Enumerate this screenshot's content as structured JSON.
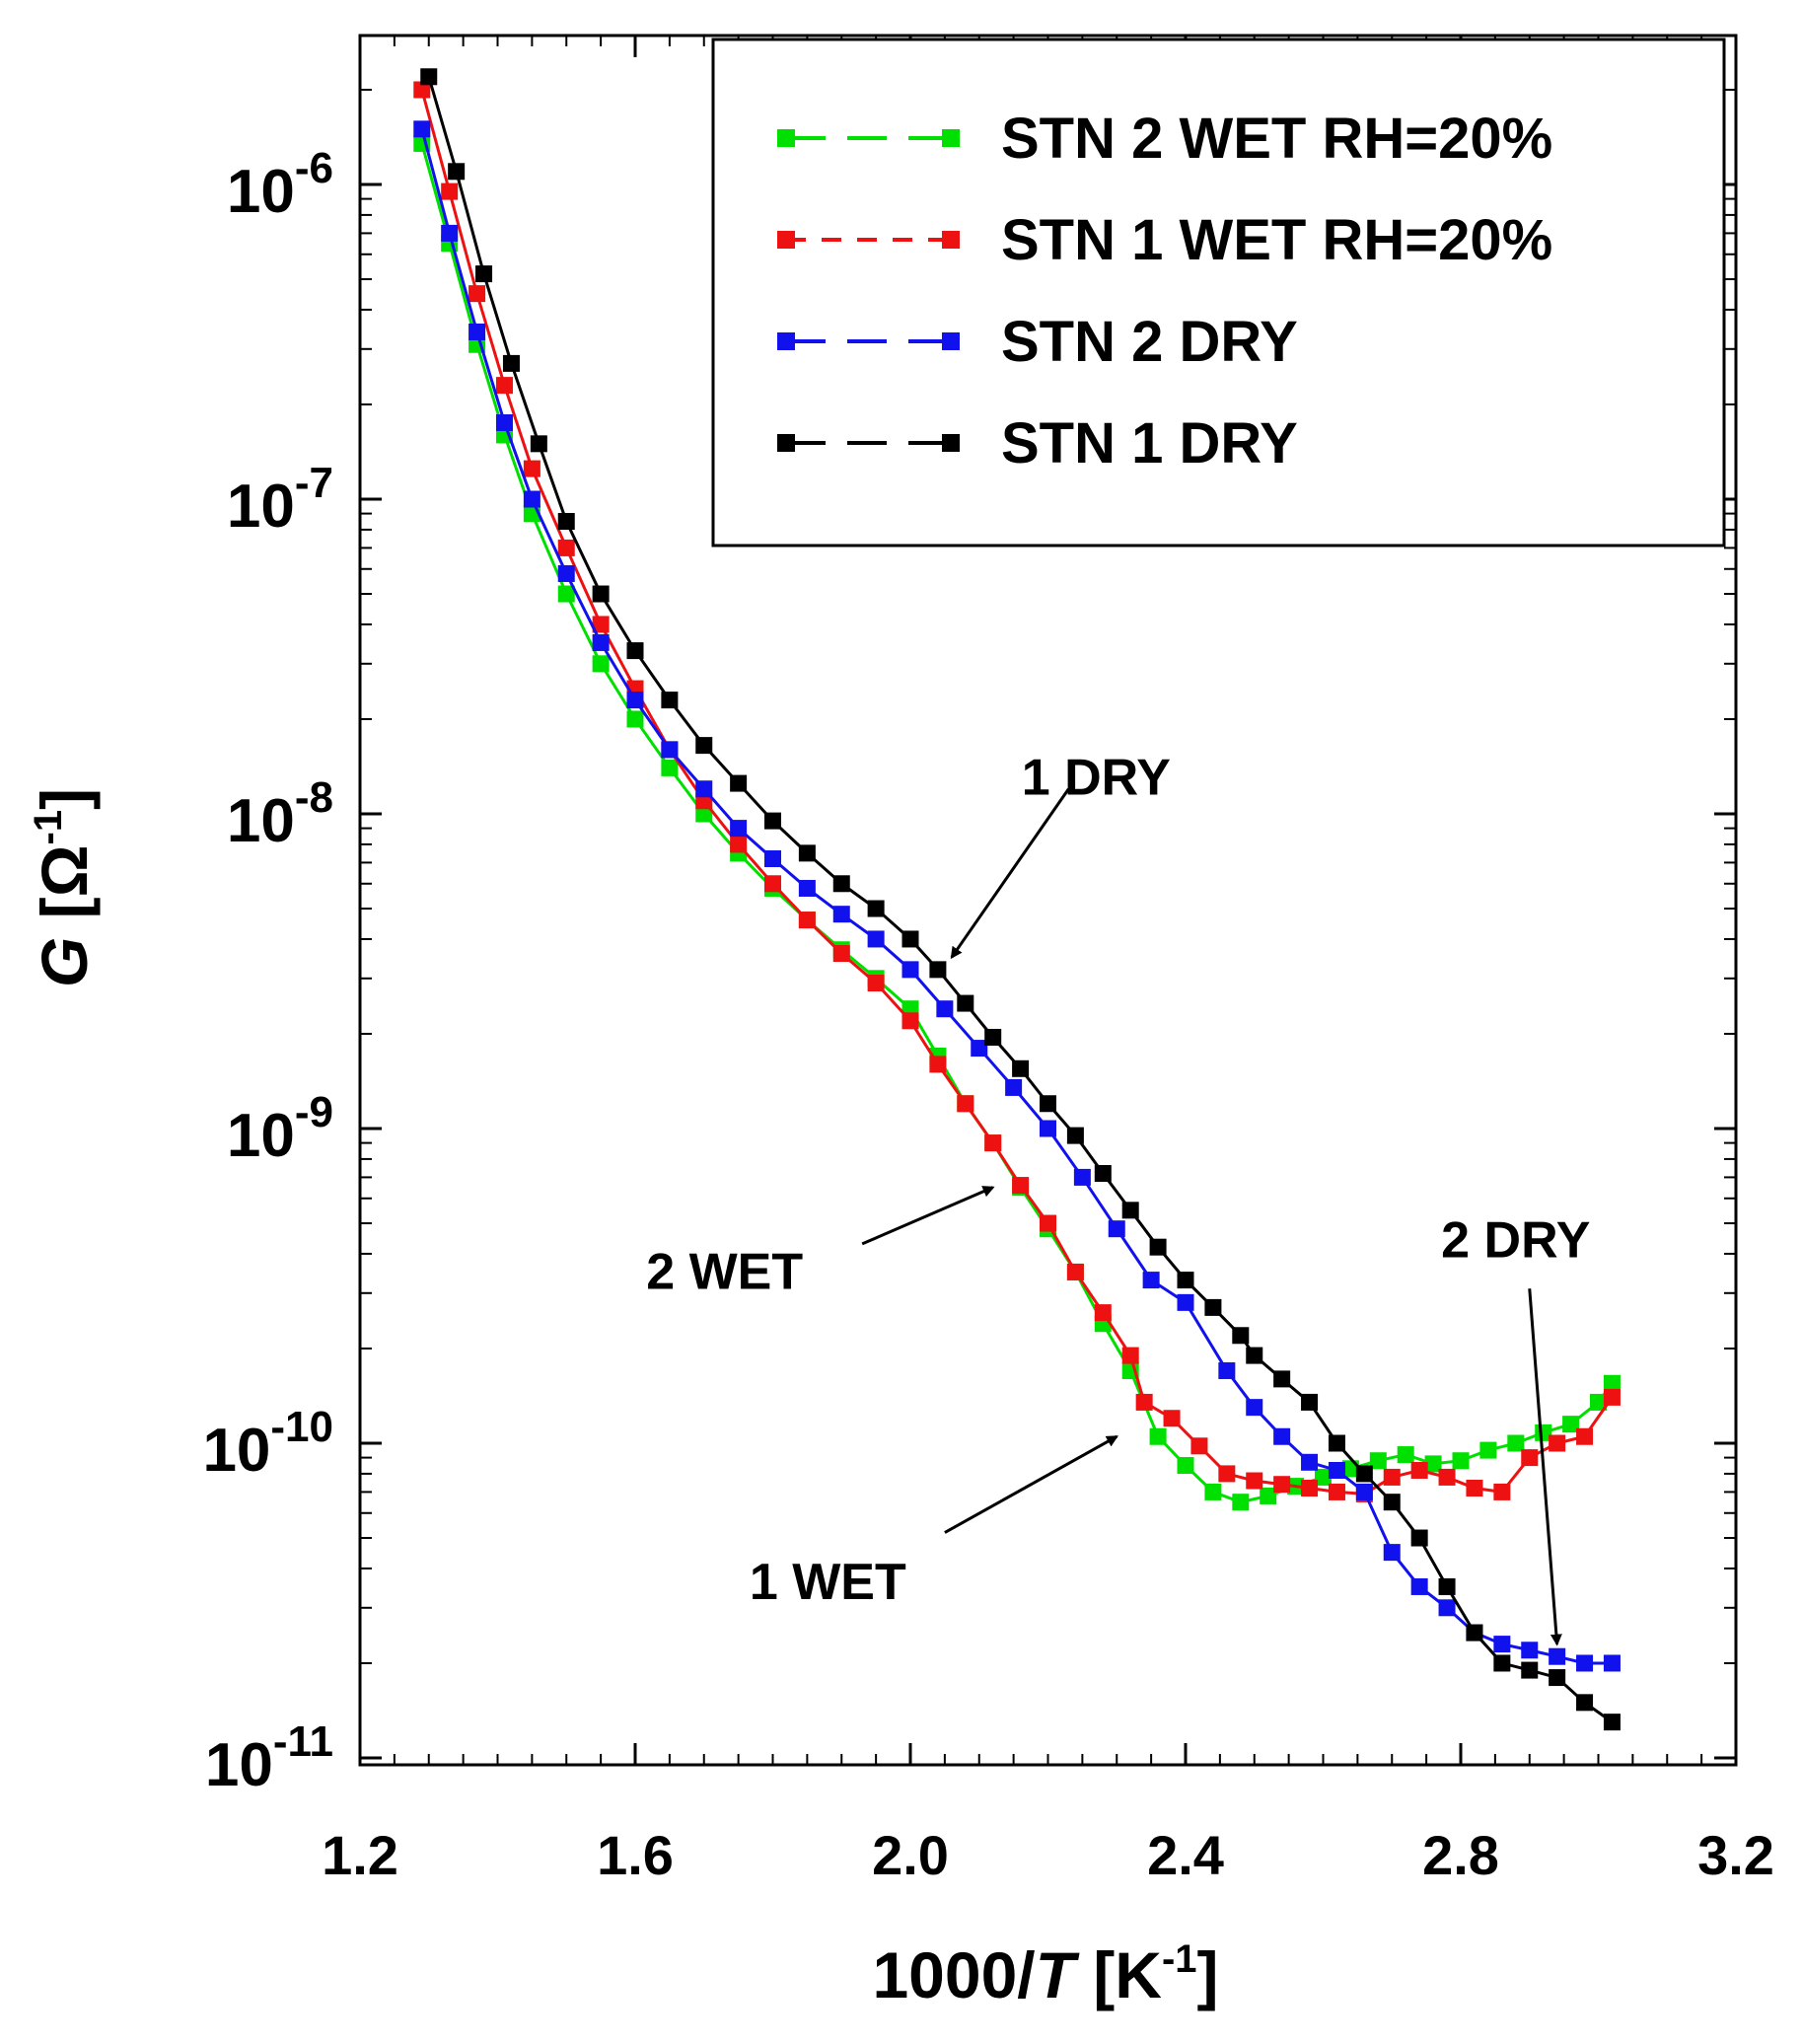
{
  "chart_data": {
    "type": "scatter",
    "xlabel": {
      "prefix": "1000/",
      "italic": "T",
      "unit_open": " [K",
      "unit_sup": "-1",
      "unit_close": "]"
    },
    "ylabel": {
      "italic": "G",
      "unit_open": " [Ω",
      "unit_sup": "-1",
      "unit_close": "]"
    },
    "xlim": [
      1.2,
      3.2
    ],
    "ylim": [
      1e-11,
      3e-06
    ],
    "yscale": "log",
    "grid": false,
    "legend_position": "top-right",
    "x_ticks": [
      "1.2",
      "1.6",
      "2.0",
      "2.4",
      "2.8",
      "3.2"
    ],
    "y_ticks": [
      {
        "value": 1e-06,
        "base": "10",
        "exp": "-6"
      },
      {
        "value": 1e-07,
        "base": "10",
        "exp": "-7"
      },
      {
        "value": 1e-08,
        "base": "10",
        "exp": "-8"
      },
      {
        "value": 1e-09,
        "base": "10",
        "exp": "-9"
      },
      {
        "value": 1e-10,
        "base": "10",
        "exp": "-10"
      },
      {
        "value": 1e-11,
        "base": "10",
        "exp": "-11"
      }
    ],
    "series": [
      {
        "name": "STN 2 WET RH=20%",
        "color": "#00e000",
        "x": [
          1.29,
          1.33,
          1.37,
          1.41,
          1.45,
          1.5,
          1.55,
          1.6,
          1.65,
          1.7,
          1.75,
          1.8,
          1.85,
          1.9,
          1.95,
          2.0,
          2.04,
          2.08,
          2.12,
          2.16,
          2.2,
          2.24,
          2.28,
          2.32,
          2.36,
          2.4,
          2.44,
          2.48,
          2.52,
          2.56,
          2.6,
          2.64,
          2.68,
          2.72,
          2.76,
          2.8,
          2.84,
          2.88,
          2.92,
          2.96,
          3.0,
          3.02
        ],
        "y": [
          1.35e-06,
          6.5e-07,
          3.1e-07,
          1.6e-07,
          9e-08,
          5e-08,
          3e-08,
          2e-08,
          1.4e-08,
          1e-08,
          7.5e-09,
          5.8e-09,
          4.6e-09,
          3.7e-09,
          3e-09,
          2.4e-09,
          1.7e-09,
          1.2e-09,
          9e-10,
          6.5e-10,
          4.8e-10,
          3.5e-10,
          2.4e-10,
          1.7e-10,
          1.05e-10,
          8.5e-11,
          7e-11,
          6.5e-11,
          6.8e-11,
          7.3e-11,
          7.8e-11,
          8.3e-11,
          8.8e-11,
          9.2e-11,
          8.6e-11,
          8.8e-11,
          9.5e-11,
          1e-10,
          1.08e-10,
          1.15e-10,
          1.35e-10,
          1.55e-10
        ]
      },
      {
        "name": "STN 1 WET RH=20%",
        "color": "#ee1111",
        "x": [
          1.29,
          1.33,
          1.37,
          1.41,
          1.45,
          1.5,
          1.55,
          1.6,
          1.65,
          1.7,
          1.75,
          1.8,
          1.85,
          1.9,
          1.95,
          2.0,
          2.04,
          2.08,
          2.12,
          2.16,
          2.2,
          2.24,
          2.28,
          2.32,
          2.34,
          2.38,
          2.42,
          2.46,
          2.5,
          2.54,
          2.58,
          2.62,
          2.66,
          2.7,
          2.74,
          2.78,
          2.82,
          2.86,
          2.9,
          2.94,
          2.98,
          3.02
        ],
        "y": [
          2e-06,
          9.5e-07,
          4.5e-07,
          2.3e-07,
          1.25e-07,
          7e-08,
          4e-08,
          2.5e-08,
          1.6e-08,
          1.1e-08,
          8e-09,
          6e-09,
          4.6e-09,
          3.6e-09,
          2.9e-09,
          2.2e-09,
          1.6e-09,
          1.2e-09,
          9e-10,
          6.6e-10,
          5e-10,
          3.5e-10,
          2.6e-10,
          1.9e-10,
          1.35e-10,
          1.2e-10,
          9.8e-11,
          8e-11,
          7.6e-11,
          7.4e-11,
          7.2e-11,
          7e-11,
          6.9e-11,
          7.8e-11,
          8.2e-11,
          7.8e-11,
          7.2e-11,
          7e-11,
          9e-11,
          1e-10,
          1.05e-10,
          1.4e-10
        ]
      },
      {
        "name": "STN 2 DRY",
        "color": "#1111ee",
        "x": [
          1.29,
          1.33,
          1.37,
          1.41,
          1.45,
          1.5,
          1.55,
          1.6,
          1.65,
          1.7,
          1.75,
          1.8,
          1.85,
          1.9,
          1.95,
          2.0,
          2.05,
          2.1,
          2.15,
          2.2,
          2.25,
          2.3,
          2.35,
          2.4,
          2.46,
          2.5,
          2.54,
          2.58,
          2.62,
          2.66,
          2.7,
          2.74,
          2.78,
          2.82,
          2.86,
          2.9,
          2.94,
          2.98,
          3.02
        ],
        "y": [
          1.5e-06,
          7e-07,
          3.4e-07,
          1.75e-07,
          1e-07,
          5.8e-08,
          3.5e-08,
          2.3e-08,
          1.6e-08,
          1.2e-08,
          9e-09,
          7.2e-09,
          5.8e-09,
          4.8e-09,
          4e-09,
          3.2e-09,
          2.4e-09,
          1.8e-09,
          1.35e-09,
          1e-09,
          7e-10,
          4.8e-10,
          3.3e-10,
          2.8e-10,
          1.7e-10,
          1.3e-10,
          1.05e-10,
          8.7e-11,
          8.2e-11,
          7e-11,
          4.5e-11,
          3.5e-11,
          3e-11,
          2.5e-11,
          2.3e-11,
          2.2e-11,
          2.1e-11,
          2e-11,
          2e-11
        ]
      },
      {
        "name": "STN 1 DRY",
        "color": "#000000",
        "x": [
          1.3,
          1.34,
          1.38,
          1.42,
          1.46,
          1.5,
          1.55,
          1.6,
          1.65,
          1.7,
          1.75,
          1.8,
          1.85,
          1.9,
          1.95,
          2.0,
          2.04,
          2.08,
          2.12,
          2.16,
          2.2,
          2.24,
          2.28,
          2.32,
          2.36,
          2.4,
          2.44,
          2.48,
          2.5,
          2.54,
          2.58,
          2.62,
          2.66,
          2.7,
          2.74,
          2.78,
          2.82,
          2.86,
          2.9,
          2.94,
          2.98,
          3.02
        ],
        "y": [
          2.2e-06,
          1.1e-06,
          5.2e-07,
          2.7e-07,
          1.5e-07,
          8.5e-08,
          5e-08,
          3.3e-08,
          2.3e-08,
          1.65e-08,
          1.25e-08,
          9.5e-09,
          7.5e-09,
          6e-09,
          5e-09,
          4e-09,
          3.2e-09,
          2.5e-09,
          1.95e-09,
          1.55e-09,
          1.2e-09,
          9.5e-10,
          7.2e-10,
          5.5e-10,
          4.2e-10,
          3.3e-10,
          2.7e-10,
          2.2e-10,
          1.9e-10,
          1.6e-10,
          1.35e-10,
          1e-10,
          8e-11,
          6.5e-11,
          5e-11,
          3.5e-11,
          2.5e-11,
          2e-11,
          1.9e-11,
          1.8e-11,
          1.5e-11,
          1.3e-11
        ]
      }
    ],
    "annotations": [
      {
        "text": "1 DRY",
        "x": 2.27,
        "y": 1.15e-08,
        "arrow_from": [
          2.23,
          1.2e-08
        ],
        "arrow_to": [
          2.06,
          3.5e-09
        ]
      },
      {
        "text": "2 WET",
        "x": 1.73,
        "y": 3.1e-10,
        "arrow_from": [
          1.93,
          4.3e-10
        ],
        "arrow_to": [
          2.12,
          6.5e-10
        ]
      },
      {
        "text": "1 WET",
        "x": 1.88,
        "y": 3.2e-11,
        "arrow_from": [
          2.05,
          5.2e-11
        ],
        "arrow_to": [
          2.3,
          1.05e-10
        ]
      },
      {
        "text": "2 DRY",
        "x": 2.88,
        "y": 3.9e-10,
        "arrow_from": [
          2.9,
          3.1e-10
        ],
        "arrow_to": [
          2.94,
          2.3e-11
        ]
      }
    ]
  }
}
